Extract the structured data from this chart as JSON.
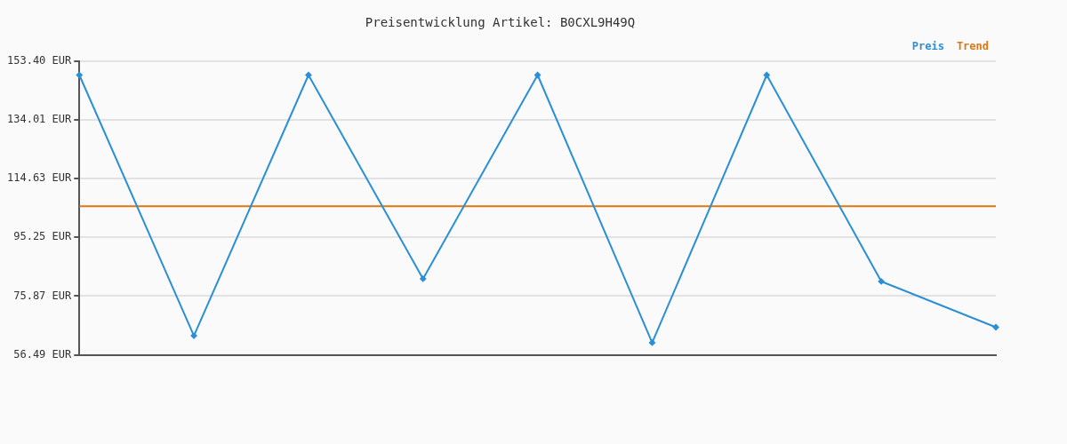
{
  "chart_data": {
    "type": "line",
    "title": "Preisentwicklung Artikel: B0CXL9H49Q",
    "categories": [
      null,
      null,
      null,
      null,
      null,
      null,
      null,
      null,
      null
    ],
    "series": [
      {
        "name": "Preis",
        "color": "#2b8fd6",
        "marker": "diamond",
        "values": [
          148.8,
          62.8,
          148.8,
          81.6,
          148.8,
          60.5,
          148.8,
          80.7,
          65.6
        ]
      },
      {
        "name": "Trend",
        "color": "#dd7711",
        "marker": "none",
        "values": [
          105.5,
          105.5,
          105.5,
          105.5,
          105.5,
          105.5,
          105.5,
          105.5,
          105.5
        ]
      }
    ],
    "ylim": [
      56.49,
      153.4
    ],
    "yticks": [
      {
        "value": 56.49,
        "label": "56.49 EUR"
      },
      {
        "value": 75.87,
        "label": "75.87 EUR"
      },
      {
        "value": 95.25,
        "label": "95.25 EUR"
      },
      {
        "value": 114.63,
        "label": "114.63 EUR"
      },
      {
        "value": 134.01,
        "label": "134.01 EUR"
      },
      {
        "value": 153.4,
        "label": "153.40 EUR"
      }
    ],
    "grid": "y",
    "legend": "top right",
    "line_style": "solid"
  }
}
